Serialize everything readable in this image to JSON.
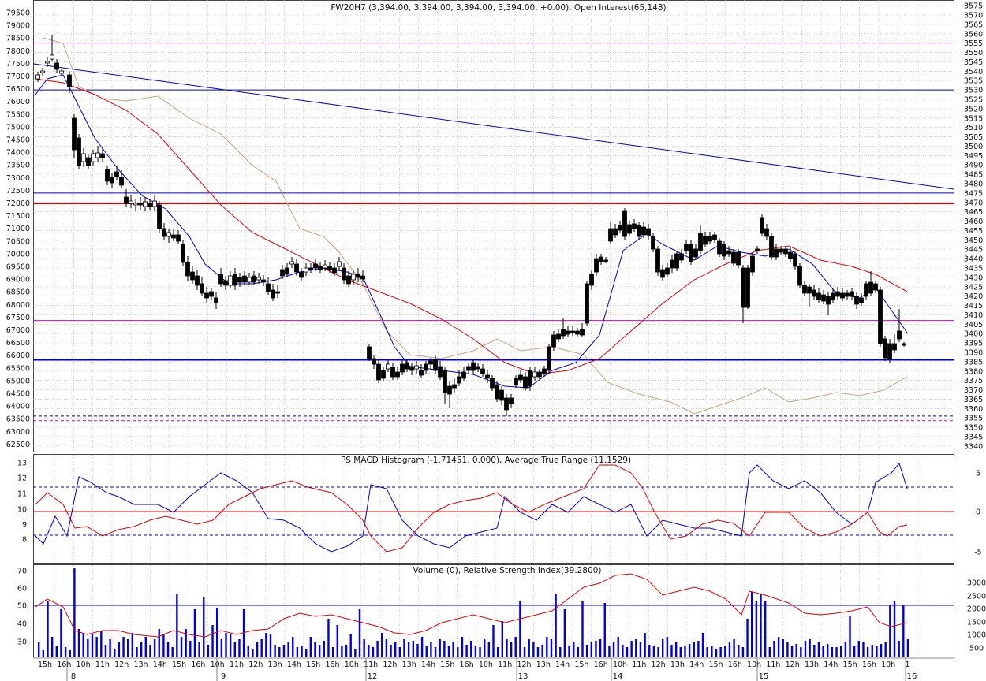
{
  "colors": {
    "candle_up": "#000000",
    "line_blue": "#0000cc",
    "line_red": "#dd0000",
    "line_tan": "#c8a07a",
    "line_magenta": "#cc00cc",
    "volume_bar": "#0000dd",
    "grid": "#b8b8b8"
  },
  "chart_data": [
    {
      "type": "candlestick",
      "title": "FW20H7 (3,394.00, 3,394.00, 3,394.00, 3,394.00, +0.00), Open Interest(65,148)",
      "left_axis_ticks": [
        "79500",
        "79000",
        "78500",
        "78000",
        "77500",
        "77000",
        "76500",
        "76000",
        "75500",
        "75000",
        "74500",
        "74000",
        "73500",
        "73000",
        "72500",
        "72000",
        "71500",
        "71000",
        "70500",
        "70000",
        "69500",
        "69000",
        "68500",
        "68000",
        "67500",
        "67000",
        "66500",
        "66000",
        "65500",
        "65000",
        "64500",
        "64000",
        "63500",
        "63000",
        "62500"
      ],
      "right_axis_ticks": [
        "3575",
        "3570",
        "3565",
        "3560",
        "3555",
        "3550",
        "3545",
        "3540",
        "3535",
        "3530",
        "3525",
        "3520",
        "3515",
        "3510",
        "3505",
        "3500",
        "3495",
        "3490",
        "3485",
        "3480",
        "3475",
        "3470",
        "3465",
        "3460",
        "3455",
        "3450",
        "3445",
        "3440",
        "3435",
        "3430",
        "3425",
        "3420",
        "3415",
        "3410",
        "3405",
        "3400",
        "3395",
        "3390",
        "3385",
        "3380",
        "3375",
        "3370",
        "3365",
        "3360",
        "3355",
        "3350",
        "3345",
        "3340"
      ],
      "ylim": [
        3337,
        3578
      ],
      "grid": true,
      "horizontal_levels": [
        {
          "value": 3555,
          "style": "dashed",
          "color": "#cc00cc"
        },
        {
          "value": 3530,
          "style": "solid",
          "color": "#0000cc"
        },
        {
          "value": 3475,
          "style": "solid",
          "color": "#0000cc"
        },
        {
          "value": 3469.5,
          "style": "solid-thick",
          "color": "#dd0000"
        },
        {
          "value": 3407,
          "style": "solid",
          "color": "#cc00cc"
        },
        {
          "value": 3386,
          "style": "solid-thick",
          "color": "#0000cc"
        },
        {
          "value": 3356,
          "style": "dashed",
          "color": "#0000cc"
        },
        {
          "value": 3353.5,
          "style": "dashed",
          "color": "#cc00cc"
        }
      ],
      "trendline": {
        "from": [
          0,
          3544
        ],
        "to": [
          100,
          3477
        ]
      },
      "overlay_series": [
        "moving-average-short (blue)",
        "moving-average-long (red)",
        "envelope (tan)"
      ]
    },
    {
      "type": "line",
      "title": "PS MACD Histogram (-1.71451, 0.000), Average True Range (11.1529)",
      "left_axis_ticks": [
        "13",
        "12",
        "11",
        "10",
        "9",
        "8"
      ],
      "right_axis_ticks": [
        "5",
        "0",
        "-5"
      ],
      "series": [
        {
          "name": "MACD"
        },
        {
          "name": "Average True Range"
        }
      ]
    },
    {
      "type": "bar",
      "title": "Volume (0), Relative Strength Index(39.2800)",
      "left_axis_ticks": [
        "70",
        "60",
        "50",
        "40",
        "30"
      ],
      "right_axis_ticks": [
        "3000",
        "2500",
        "2000",
        "1500",
        "1000",
        "500"
      ],
      "series": [
        {
          "name": "Volume"
        },
        {
          "name": "Relative Strength Index"
        }
      ]
    }
  ],
  "time_axis": {
    "day_labels": [
      "8",
      "9",
      "12",
      "13",
      "14",
      "15",
      "16"
    ],
    "hour_labels": [
      "15h",
      "16h",
      "10h",
      "11h",
      "12h",
      "13h",
      "14h",
      "15h",
      "16h",
      "10h",
      "11h",
      "12h",
      "13h",
      "14h",
      "15h",
      "16h",
      "10h",
      "11h",
      "12h",
      "13h",
      "14h",
      "15h",
      "16h",
      "10h",
      "11h",
      "12h",
      "13h",
      "14h",
      "15h",
      "16h",
      "10h",
      "11h",
      "12h",
      "13h",
      "14h",
      "15h",
      "16h",
      "10h",
      "11h",
      "12h",
      "13h",
      "14h",
      "15h",
      "16h",
      "10h",
      "1"
    ]
  }
}
